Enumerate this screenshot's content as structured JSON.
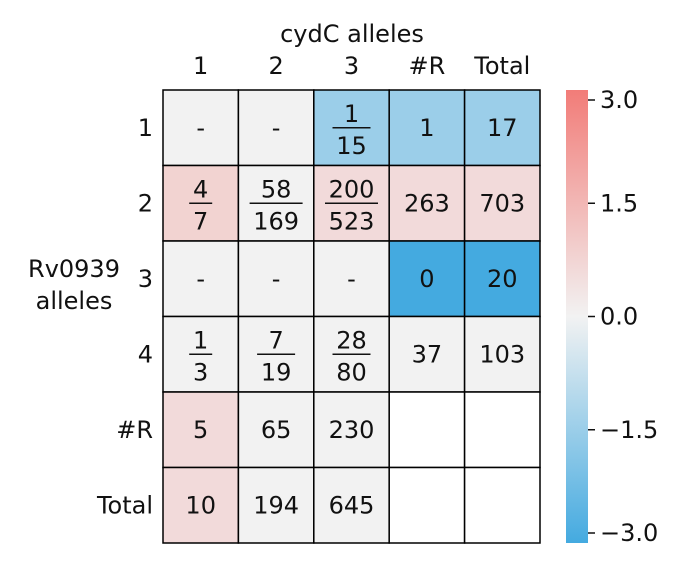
{
  "chart_data": {
    "type": "heatmap",
    "x_axis_title": "cydC alleles",
    "y_axis_title_lines": [
      "Rv0939",
      "alleles"
    ],
    "col_labels": [
      "1",
      "2",
      "3",
      "#R",
      "Total"
    ],
    "row_labels": [
      "1",
      "2",
      "3",
      "4",
      "#R",
      "Total"
    ],
    "cells": [
      [
        {
          "t": "-",
          "c": 0.0
        },
        {
          "t": "-",
          "c": 0.0
        },
        {
          "n": "1",
          "d": "15",
          "c": -1.5
        },
        {
          "t": "1",
          "c": -1.5
        },
        {
          "t": "17",
          "c": -1.5
        }
      ],
      [
        {
          "n": "4",
          "d": "7",
          "c": 0.8
        },
        {
          "n": "58",
          "d": "169",
          "c": 0.0
        },
        {
          "n": "200",
          "d": "523",
          "c": 0.6
        },
        {
          "t": "263",
          "c": 0.6
        },
        {
          "t": "703",
          "c": 0.6
        }
      ],
      [
        {
          "t": "-",
          "c": 0.0
        },
        {
          "t": "-",
          "c": 0.0
        },
        {
          "t": "-",
          "c": 0.0
        },
        {
          "t": "0",
          "c": -3.0
        },
        {
          "t": "20",
          "c": -3.0
        }
      ],
      [
        {
          "n": "1",
          "d": "3",
          "c": 0.0
        },
        {
          "n": "7",
          "d": "19",
          "c": 0.0
        },
        {
          "n": "28",
          "d": "80",
          "c": 0.0
        },
        {
          "t": "37",
          "c": 0.0
        },
        {
          "t": "103",
          "c": 0.0
        }
      ],
      [
        {
          "t": "5",
          "c": 0.6
        },
        {
          "t": "65",
          "c": 0.0
        },
        {
          "t": "230",
          "c": 0.0
        },
        null,
        null
      ],
      [
        {
          "t": "10",
          "c": 0.6
        },
        {
          "t": "194",
          "c": 0.0
        },
        {
          "t": "645",
          "c": 0.0
        },
        null,
        null
      ]
    ],
    "colorbar": {
      "range": [
        -3.0,
        3.0
      ],
      "ticks": [
        3.0,
        1.5,
        0.0,
        -1.5,
        -3.0
      ],
      "tick_labels": [
        "3.0",
        "1.5",
        "0.0",
        "−1.5",
        "−3.0"
      ],
      "colors": {
        "low": "#44aae0",
        "mid": "#f2f2f2",
        "high": "#f27c78"
      }
    }
  }
}
